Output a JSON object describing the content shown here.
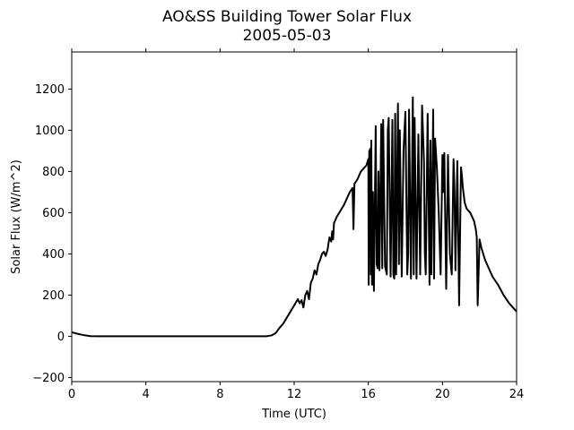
{
  "chart_data": {
    "type": "line",
    "title": "AO&SS Building Tower Solar Flux",
    "subtitle": "2005-05-03",
    "xlabel": "Time (UTC)",
    "ylabel": "Solar Flux (W/m^2)",
    "xlim": [
      0,
      24
    ],
    "ylim": [
      -220,
      1380
    ],
    "xticks": [
      0,
      4,
      8,
      12,
      16,
      20,
      24
    ],
    "yticks": [
      -200,
      0,
      200,
      400,
      600,
      800,
      1000,
      1200
    ],
    "grid": false,
    "line_color": "#000000",
    "series": [
      {
        "x": [
          0,
          0.3,
          0.7,
          1.0,
          1.5,
          2.0,
          3.0,
          4.0,
          5.0,
          6.0,
          7.0,
          8.0,
          9.0,
          10.0,
          10.5,
          10.8,
          11.0,
          11.2,
          11.4,
          11.6,
          11.8,
          12.0,
          12.2,
          12.3,
          12.4,
          12.5,
          12.6,
          12.7,
          12.8,
          12.9,
          13.0,
          13.1,
          13.2,
          13.3,
          13.4,
          13.5,
          13.6,
          13.7,
          13.8,
          13.9,
          14.0,
          14.05,
          14.1,
          14.15,
          14.2,
          14.3,
          14.5,
          14.7,
          14.9,
          15.0,
          15.15,
          15.2,
          15.25,
          15.4,
          15.6,
          15.8,
          15.9,
          16.0,
          16.02,
          16.05,
          16.08,
          16.1,
          16.13,
          16.16,
          16.2,
          16.25,
          16.3,
          16.4,
          16.45,
          16.5,
          16.55,
          16.6,
          16.7,
          16.75,
          16.8,
          16.9,
          17.0,
          17.05,
          17.1,
          17.2,
          17.3,
          17.35,
          17.4,
          17.45,
          17.5,
          17.6,
          17.65,
          17.7,
          17.8,
          17.9,
          18.0,
          18.1,
          18.15,
          18.2,
          18.3,
          18.4,
          18.45,
          18.5,
          18.6,
          18.7,
          18.8,
          18.9,
          19.0,
          19.05,
          19.1,
          19.2,
          19.3,
          19.35,
          19.4,
          19.5,
          19.55,
          19.6,
          19.7,
          19.8,
          19.9,
          20.0,
          20.05,
          20.1,
          20.2,
          20.3,
          20.4,
          20.5,
          20.6,
          20.65,
          20.7,
          20.8,
          20.9,
          21.0,
          21.05,
          21.1,
          21.2,
          21.3,
          21.5,
          21.7,
          21.8,
          21.85,
          21.9,
          22.0,
          22.1,
          22.2,
          22.3,
          22.5,
          22.7,
          23.0,
          23.3,
          23.6,
          24.0
        ],
        "y": [
          20,
          12,
          5,
          1,
          0,
          0,
          0,
          0,
          0,
          0,
          0,
          0,
          0,
          0,
          0,
          5,
          15,
          40,
          60,
          90,
          120,
          150,
          180,
          160,
          175,
          140,
          200,
          220,
          180,
          260,
          280,
          320,
          300,
          350,
          370,
          400,
          410,
          390,
          420,
          480,
          460,
          510,
          470,
          550,
          560,
          580,
          610,
          640,
          680,
          700,
          720,
          520,
          740,
          760,
          800,
          820,
          830,
          860,
          250,
          900,
          560,
          910,
          300,
          950,
          250,
          700,
          220,
          1020,
          350,
          330,
          800,
          320,
          1030,
          330,
          1050,
          340,
          300,
          1000,
          1060,
          290,
          1050,
          300,
          280,
          1080,
          300,
          1130,
          350,
          1000,
          290,
          900,
          1090,
          300,
          400,
          1100,
          280,
          1160,
          300,
          1060,
          280,
          980,
          300,
          1120,
          850,
          400,
          300,
          1080,
          250,
          950,
          300,
          1100,
          280,
          960,
          820,
          600,
          300,
          880,
          700,
          890,
          230,
          880,
          400,
          300,
          860,
          700,
          320,
          850,
          150,
          820,
          780,
          720,
          650,
          620,
          600,
          560,
          520,
          480,
          150,
          470,
          430,
          400,
          370,
          330,
          290,
          250,
          200,
          160,
          120
        ]
      }
    ]
  }
}
